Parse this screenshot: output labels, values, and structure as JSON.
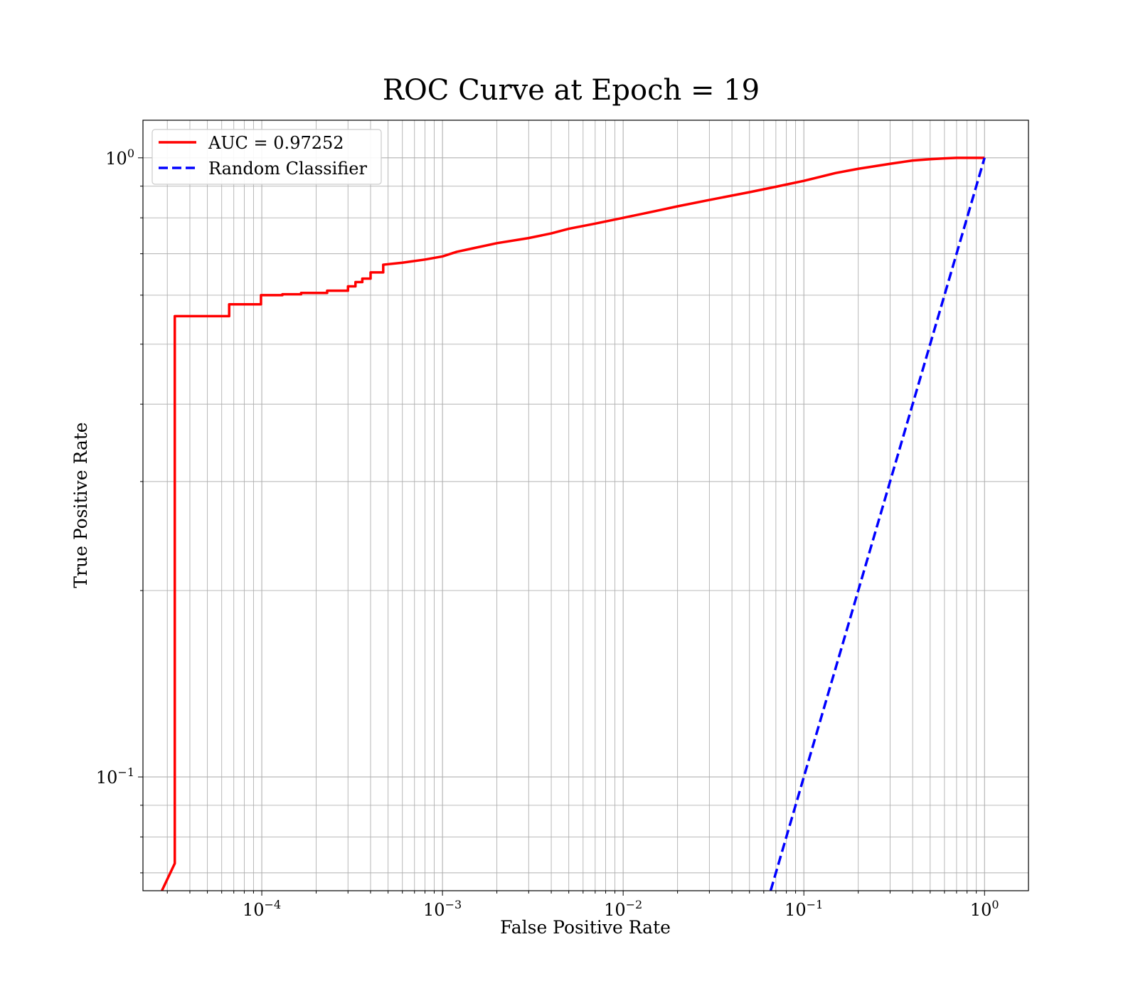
{
  "chart_data": {
    "type": "line",
    "title": "ROC Curve at Epoch = 19",
    "xlabel": "False Positive Rate",
    "ylabel": "True Positive Rate",
    "x_scale": "log",
    "y_scale": "log",
    "xlim": [
      2.2e-05,
      1.75
    ],
    "ylim": [
      0.0655,
      1.15
    ],
    "grid": true,
    "grid_minor": true,
    "legend_position": "upper-left",
    "x_ticks": [
      {
        "value": 0.0001,
        "base": "10",
        "exp": "−4"
      },
      {
        "value": 0.001,
        "base": "10",
        "exp": "−3"
      },
      {
        "value": 0.01,
        "base": "10",
        "exp": "−2"
      },
      {
        "value": 0.1,
        "base": "10",
        "exp": "−1"
      },
      {
        "value": 1,
        "base": "10",
        "exp": "0"
      }
    ],
    "y_ticks": [
      {
        "value": 0.1,
        "base": "10",
        "exp": "−1"
      },
      {
        "value": 1,
        "base": "10",
        "exp": "0"
      }
    ],
    "series": [
      {
        "name": "AUC = 0.97252",
        "color": "#ff0000",
        "style": "solid",
        "x": [
          2.8e-05,
          3.3e-05,
          3.3e-05,
          6.6e-05,
          6.6e-05,
          9.9e-05,
          9.9e-05,
          0.00013,
          0.00013,
          0.000165,
          0.000165,
          0.00023,
          0.00023,
          0.0003,
          0.0003,
          0.00033,
          0.00033,
          0.00036,
          0.00036,
          0.0004,
          0.0004,
          0.00047,
          0.00047,
          0.0006,
          0.0008,
          0.001,
          0.0012,
          0.0015,
          0.002,
          0.003,
          0.004,
          0.005,
          0.007,
          0.01,
          0.015,
          0.02,
          0.03,
          0.05,
          0.07,
          0.1,
          0.15,
          0.2,
          0.3,
          0.4,
          0.5,
          0.6,
          0.7,
          0.8,
          1.0
        ],
        "y": [
          0.0655,
          0.0725,
          0.555,
          0.555,
          0.58,
          0.58,
          0.6,
          0.6,
          0.602,
          0.602,
          0.605,
          0.605,
          0.61,
          0.61,
          0.62,
          0.62,
          0.63,
          0.63,
          0.638,
          0.638,
          0.653,
          0.653,
          0.672,
          0.677,
          0.685,
          0.693,
          0.705,
          0.715,
          0.728,
          0.742,
          0.755,
          0.768,
          0.783,
          0.8,
          0.82,
          0.835,
          0.855,
          0.88,
          0.898,
          0.918,
          0.945,
          0.96,
          0.978,
          0.99,
          0.995,
          0.998,
          1.0,
          1.0,
          1.0
        ],
        "line_width": 3.5
      },
      {
        "name": "Random Classifier",
        "color": "#0000ff",
        "style": "dashed",
        "x": [
          0.0655,
          1.0
        ],
        "y": [
          0.0655,
          1.0
        ],
        "line_width": 3.5
      }
    ]
  }
}
